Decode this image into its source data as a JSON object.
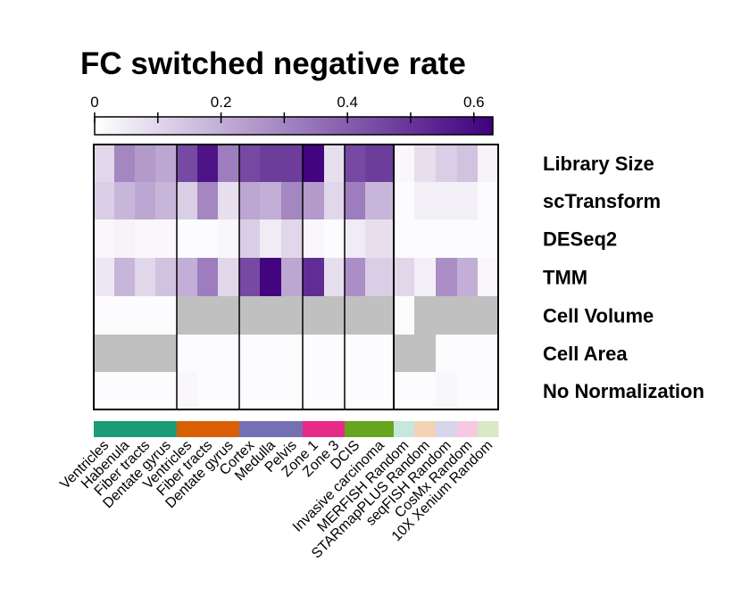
{
  "chart_data": {
    "type": "heatmap",
    "title": "FC switched negative rate",
    "colorbar": {
      "min": 0,
      "max": 0.63,
      "ticks": [
        0,
        0.2,
        0.4,
        0.6
      ],
      "tick_labels": [
        "0",
        "0.2",
        "0.4",
        "0.6"
      ],
      "colors": [
        "#ffffff",
        "#3f007d"
      ]
    },
    "rows": [
      "Library Size",
      "scTransform",
      "DESeq2",
      "TMM",
      "Cell Volume",
      "Cell Area",
      "No Normalization"
    ],
    "columns": [
      "Ventricles",
      "Habenula",
      "Fiber tracts",
      "Dentate gyrus",
      "Ventricles",
      "Fiber tracts",
      "Dentate gyrus",
      "Cortex",
      "Medulla",
      "Pelvis",
      "Zone 1",
      "Zone 3",
      "DCIS",
      "Invasive carcinoma",
      "MERFISH Random",
      "STARmapPLUS Random",
      "seqFISH Random",
      "CosMx Random",
      "10X Xenium Random"
    ],
    "column_groups": [
      {
        "start": 0,
        "end": 3,
        "color": "#1b9e77"
      },
      {
        "start": 4,
        "end": 6,
        "color": "#d95f02"
      },
      {
        "start": 7,
        "end": 9,
        "color": "#7570b3"
      },
      {
        "start": 10,
        "end": 11,
        "color": "#e7298a"
      },
      {
        "start": 12,
        "end": 13,
        "color": "#66a61e"
      },
      {
        "start": 14,
        "end": 14,
        "color": "#c6e8dc"
      },
      {
        "start": 15,
        "end": 15,
        "color": "#f4d2b6"
      },
      {
        "start": 16,
        "end": 16,
        "color": "#d6d5ea"
      },
      {
        "start": 17,
        "end": 17,
        "color": "#f7c8e1"
      },
      {
        "start": 18,
        "end": 18,
        "color": "#d8e9c6"
      }
    ],
    "panels": [
      [
        0,
        13
      ],
      [
        14,
        18
      ]
    ],
    "missing_color": "#c0c0c0",
    "values": [
      [
        0.1,
        0.3,
        0.25,
        0.22,
        0.45,
        0.58,
        0.32,
        0.45,
        0.48,
        0.48,
        0.62,
        0.08,
        0.45,
        0.48,
        0.02,
        0.08,
        0.12,
        0.15,
        0.03
      ],
      [
        0.12,
        0.18,
        0.22,
        0.18,
        0.12,
        0.3,
        0.08,
        0.22,
        0.2,
        0.3,
        0.25,
        0.1,
        0.32,
        0.18,
        0.01,
        0.04,
        0.04,
        0.04,
        0.01
      ],
      [
        0.02,
        0.03,
        0.02,
        0.02,
        0.01,
        0.01,
        0.02,
        0.12,
        0.05,
        0.1,
        0.02,
        0.01,
        0.05,
        0.08,
        0.01,
        0.01,
        0.01,
        0.01,
        0.01
      ],
      [
        0.06,
        0.18,
        0.1,
        0.15,
        0.2,
        0.32,
        0.1,
        0.45,
        0.62,
        0.22,
        0.52,
        0.08,
        0.28,
        0.12,
        0.1,
        0.04,
        0.28,
        0.2,
        0.02
      ],
      [
        0.01,
        0.01,
        0.01,
        0.01,
        null,
        null,
        null,
        null,
        null,
        null,
        null,
        null,
        null,
        null,
        0.01,
        null,
        null,
        null,
        null
      ],
      [
        null,
        null,
        null,
        null,
        0.01,
        0.01,
        0.01,
        0.01,
        0.01,
        0.01,
        0.01,
        0.01,
        0.01,
        0.01,
        null,
        null,
        0.01,
        0.01,
        0.01
      ],
      [
        0.01,
        0.01,
        0.01,
        0.01,
        0.02,
        0.01,
        0.01,
        0.01,
        0.01,
        0.01,
        0.01,
        0.01,
        0.01,
        0.01,
        0.01,
        0.01,
        0.02,
        0.01,
        0.01
      ]
    ]
  }
}
